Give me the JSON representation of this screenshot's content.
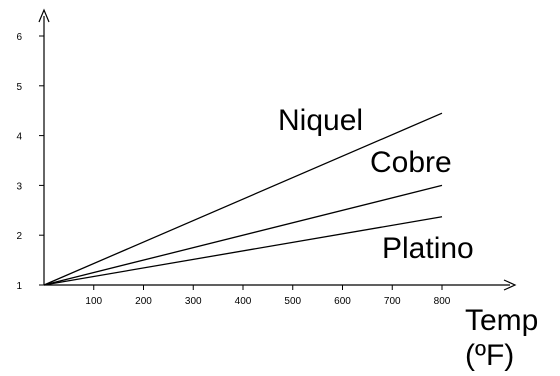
{
  "chart_data": {
    "type": "line",
    "title": "",
    "xlabel_line1": "Temp",
    "xlabel_line2": "(ºF)",
    "ylabel": "",
    "xlim": [
      0,
      800
    ],
    "ylim": [
      1,
      6
    ],
    "x_ticks": [
      100,
      200,
      300,
      400,
      500,
      600,
      700,
      800
    ],
    "x_tick_labels": [
      "100",
      "200",
      "300",
      "400",
      "500",
      "600",
      "700",
      "800"
    ],
    "y_ticks": [
      1,
      2,
      3,
      4,
      5,
      6
    ],
    "y_tick_labels": [
      "1",
      "2",
      "3",
      "4",
      "5",
      "6"
    ],
    "grid": false,
    "series": [
      {
        "name": "Niquel",
        "x": [
          0,
          800
        ],
        "y": [
          1,
          4.45
        ]
      },
      {
        "name": "Cobre",
        "x": [
          0,
          800
        ],
        "y": [
          1,
          3.0
        ]
      },
      {
        "name": "Platino",
        "x": [
          0,
          800
        ],
        "y": [
          1,
          2.37
        ]
      }
    ]
  }
}
